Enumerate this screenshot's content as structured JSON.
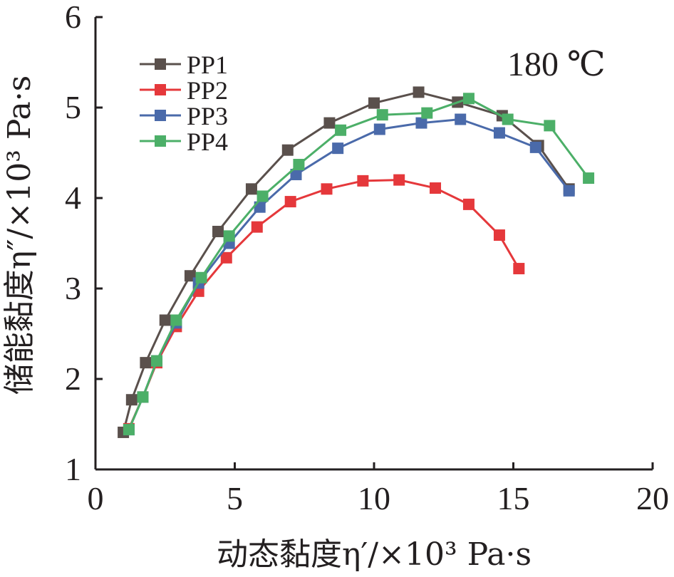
{
  "chart_data": {
    "type": "line",
    "annotation": "180 ℃",
    "xlabel": "动态黏度η′/×10³ Pa·s",
    "ylabel": "储能黏度η″/×10³ Pa·s",
    "xlim": [
      0,
      20
    ],
    "ylim": [
      1,
      6
    ],
    "x_ticks": [
      "0",
      "5",
      "10",
      "15",
      "20"
    ],
    "y_ticks": [
      "1",
      "2",
      "3",
      "4",
      "5",
      "6"
    ],
    "legend_position": "top-left",
    "grid": false,
    "series": [
      {
        "name": "PP1",
        "color": "#5a504c",
        "points": [
          [
            1.0,
            1.41
          ],
          [
            1.3,
            1.77
          ],
          [
            1.8,
            2.18
          ],
          [
            2.5,
            2.65
          ],
          [
            3.4,
            3.14
          ],
          [
            4.4,
            3.63
          ],
          [
            5.6,
            4.1
          ],
          [
            6.9,
            4.53
          ],
          [
            8.4,
            4.83
          ],
          [
            10.0,
            5.05
          ],
          [
            11.6,
            5.17
          ],
          [
            13.0,
            5.06
          ],
          [
            14.6,
            4.91
          ],
          [
            15.9,
            4.58
          ],
          [
            17.0,
            4.1
          ]
        ]
      },
      {
        "name": "PP2",
        "color": "#e5383b",
        "points": [
          [
            1.2,
            1.45
          ],
          [
            1.7,
            1.8
          ],
          [
            2.2,
            2.18
          ],
          [
            2.9,
            2.58
          ],
          [
            3.7,
            2.97
          ],
          [
            4.7,
            3.34
          ],
          [
            5.8,
            3.68
          ],
          [
            7.0,
            3.96
          ],
          [
            8.3,
            4.1
          ],
          [
            9.6,
            4.19
          ],
          [
            10.9,
            4.2
          ],
          [
            12.2,
            4.11
          ],
          [
            13.4,
            3.93
          ],
          [
            14.5,
            3.59
          ],
          [
            15.2,
            3.22
          ]
        ]
      },
      {
        "name": "PP3",
        "color": "#4a6aaa",
        "points": [
          [
            1.2,
            1.44
          ],
          [
            1.7,
            1.8
          ],
          [
            2.2,
            2.2
          ],
          [
            2.9,
            2.62
          ],
          [
            3.7,
            3.06
          ],
          [
            4.8,
            3.5
          ],
          [
            5.9,
            3.9
          ],
          [
            7.2,
            4.26
          ],
          [
            8.7,
            4.55
          ],
          [
            10.2,
            4.76
          ],
          [
            11.7,
            4.83
          ],
          [
            13.1,
            4.87
          ],
          [
            14.5,
            4.72
          ],
          [
            15.8,
            4.56
          ],
          [
            17.0,
            4.08
          ]
        ]
      },
      {
        "name": "PP4",
        "color": "#4caf68",
        "points": [
          [
            1.2,
            1.44
          ],
          [
            1.7,
            1.8
          ],
          [
            2.2,
            2.2
          ],
          [
            2.9,
            2.65
          ],
          [
            3.8,
            3.12
          ],
          [
            4.8,
            3.58
          ],
          [
            6.0,
            4.02
          ],
          [
            7.3,
            4.37
          ],
          [
            8.8,
            4.75
          ],
          [
            10.3,
            4.92
          ],
          [
            11.9,
            4.94
          ],
          [
            13.4,
            5.1
          ],
          [
            14.8,
            4.87
          ],
          [
            16.3,
            4.8
          ],
          [
            17.7,
            4.22
          ]
        ]
      }
    ]
  }
}
